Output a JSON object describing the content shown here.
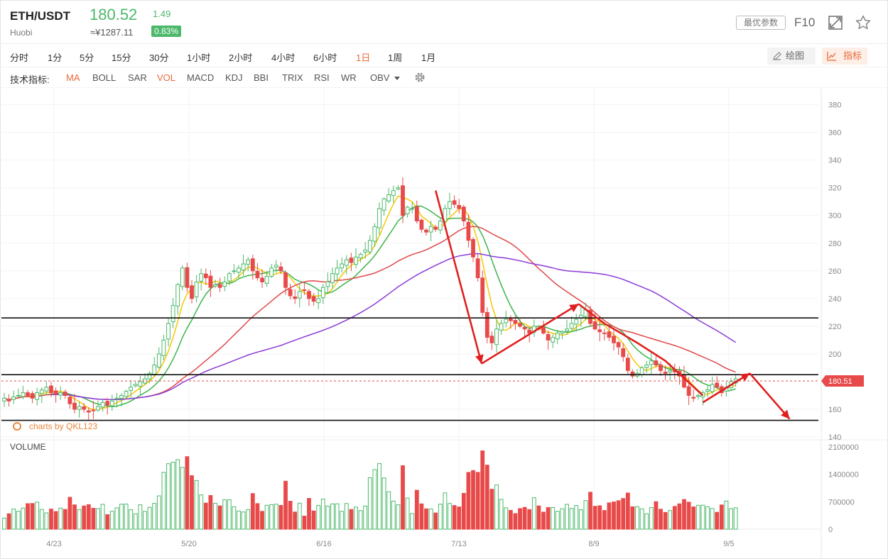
{
  "header": {
    "symbol": "ETH/USDT",
    "exchange": "Huobi",
    "price": "180.52",
    "cny_price": "≈¥1287.11",
    "change": "1.49",
    "change_pct": "0.83%",
    "best_params_label": "最优参数",
    "f10_label": "F10",
    "up_color": "#4bb86a",
    "down_color": "#e84a4a",
    "accent_color": "#e86a3a"
  },
  "timeframes": {
    "items": [
      "分时",
      "1分",
      "5分",
      "15分",
      "30分",
      "1小时",
      "2小时",
      "4小时",
      "6小时",
      "1日",
      "1周",
      "1月"
    ],
    "active": "1日"
  },
  "tools": {
    "draw_label": "绘图",
    "indicator_label": "指标"
  },
  "indicators": {
    "label": "技术指标:",
    "items": [
      "MA",
      "BOLL",
      "SAR",
      "VOL",
      "MACD",
      "KDJ",
      "BBI",
      "TRIX",
      "RSI",
      "WR",
      "OBV"
    ],
    "active": [
      "MA",
      "VOL"
    ]
  },
  "chart_data": {
    "type": "candlestick",
    "title": "ETH/USDT 1日",
    "price_axis": {
      "ticks": [
        380,
        360,
        340,
        320,
        300,
        280,
        260,
        240,
        220,
        200,
        160,
        140
      ],
      "range": [
        140,
        388
      ]
    },
    "volume_axis": {
      "title": "VOLUME",
      "ticks": [
        "2100000",
        "1400000",
        "700000",
        "0"
      ],
      "range": [
        0,
        2100000
      ]
    },
    "x_tick_labels": [
      "4/23",
      "5/20",
      "6/16",
      "7/13",
      "8/9",
      "9/5"
    ],
    "current_price_label": "180.51",
    "watermark": "charts by QKL123",
    "horizontal_levels": [
      226,
      185,
      152
    ],
    "closes": [
      168,
      166,
      169,
      170,
      172,
      170,
      168,
      172,
      174,
      176,
      172,
      171,
      172,
      170,
      164,
      160,
      162,
      160,
      158,
      159,
      162,
      165,
      163,
      166,
      168,
      170,
      173,
      176,
      178,
      180,
      182,
      186,
      192,
      200,
      210,
      222,
      235,
      250,
      262,
      248,
      240,
      252,
      258,
      255,
      248,
      250,
      248,
      252,
      258,
      260,
      262,
      265,
      268,
      260,
      255,
      252,
      256,
      262,
      264,
      260,
      248,
      242,
      240,
      245,
      246,
      240,
      238,
      240,
      248,
      252,
      258,
      262,
      265,
      268,
      266,
      270,
      272,
      275,
      282,
      292,
      305,
      312,
      315,
      318,
      320,
      300,
      306,
      305,
      296,
      290,
      288,
      292,
      290,
      296,
      305,
      310,
      308,
      305,
      296,
      282,
      270,
      255,
      230,
      212,
      208,
      218,
      222,
      225,
      224,
      222,
      220,
      218,
      215,
      220,
      218,
      215,
      210,
      212,
      215,
      216,
      218,
      222,
      225,
      228,
      232,
      222,
      218,
      216,
      215,
      212,
      208,
      205,
      198,
      188,
      184,
      186,
      190,
      192,
      195,
      192,
      188,
      186,
      188,
      187,
      184,
      176,
      170,
      168,
      170,
      172,
      174,
      178,
      176,
      172,
      176,
      180,
      182
    ],
    "ma_series": [
      {
        "name": "MA5",
        "color": "#f5c800"
      },
      {
        "name": "MA10",
        "color": "#3cb44b"
      },
      {
        "name": "MA30",
        "color": "#e04848"
      },
      {
        "name": "MA60",
        "color": "#8a3bd9"
      }
    ],
    "annotations": [
      {
        "type": "arrow",
        "from": [
          24,
          3.5
        ],
        "to": [
          21.3,
          4.6
        ],
        "color": "#e02020"
      }
    ]
  }
}
